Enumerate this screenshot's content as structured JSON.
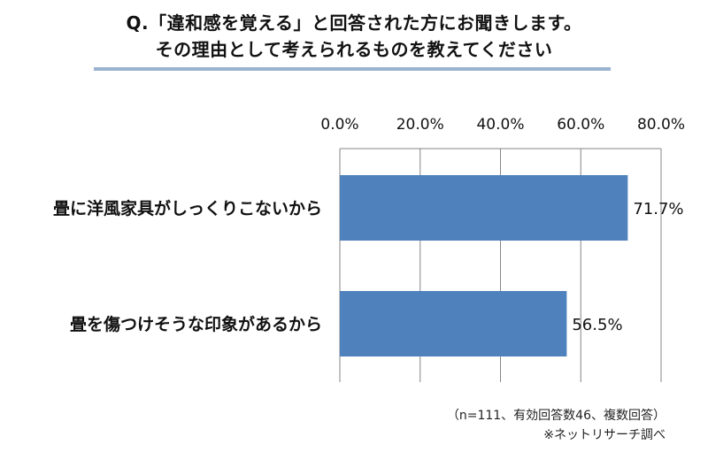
{
  "title": {
    "line1": "Q.「違和感を覚える」と回答された方にお聞きします。",
    "line2": "その理由として考えられるものを教えてください"
  },
  "colors": {
    "bar": "#4f81bd",
    "grid": "#868686",
    "rule": "#9ab3d0"
  },
  "chart_data": {
    "type": "bar",
    "orientation": "horizontal",
    "categories": [
      "畳に洋風家具がしっくりこないから",
      "畳を傷つけそうな印象があるから"
    ],
    "values": [
      71.7,
      56.5
    ],
    "value_labels": [
      "71.7%",
      "56.5%"
    ],
    "tick_values": [
      0,
      20,
      40,
      60,
      80
    ],
    "tick_labels": [
      "0.0%",
      "20.0%",
      "40.0%",
      "60.0%",
      "80.0%"
    ],
    "xlim": [
      0,
      80
    ],
    "grid": true,
    "legend": "none"
  },
  "footnotes": {
    "sample": "（n=111、有効回答数46、複数回答）",
    "source": "※ネットリサーチ調べ"
  }
}
